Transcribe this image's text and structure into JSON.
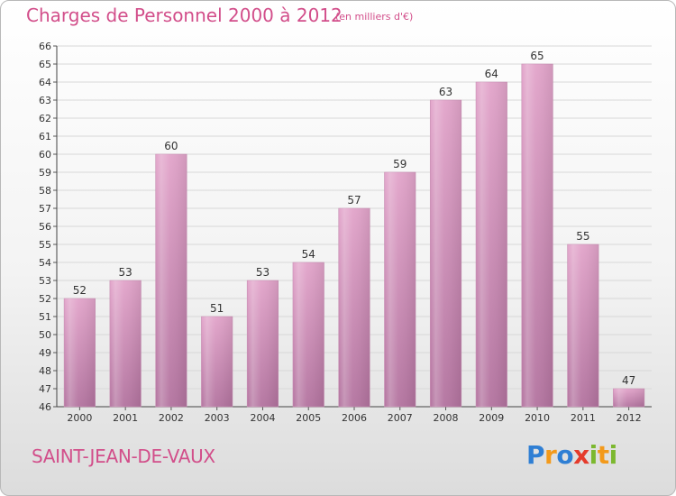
{
  "header": {
    "title": "Charges de Personnel 2000 à 2012",
    "subtitle": "(en milliers d'€)"
  },
  "footer": {
    "commune": "SAINT-JEAN-DE-VAUX",
    "logo_letters": [
      {
        "char": "P",
        "color": "#2f7fd4"
      },
      {
        "char": "r",
        "color": "#f39a1b"
      },
      {
        "char": "o",
        "color": "#2f7fd4"
      },
      {
        "char": "x",
        "color": "#e53b2c"
      },
      {
        "char": "i",
        "color": "#7cb82f"
      },
      {
        "char": "t",
        "color": "#f39a1b"
      },
      {
        "char": "i",
        "color": "#7cb82f"
      }
    ]
  },
  "colors": {
    "bar_fill_top": "#e2a4ca",
    "bar_fill_bottom": "#b3739f",
    "grid": "#d8d8d8",
    "title": "#d24e8a"
  },
  "chart_data": {
    "type": "bar",
    "title": "Charges de Personnel 2000 à 2012",
    "subtitle": "(en milliers d'€)",
    "categories": [
      "2000",
      "2001",
      "2002",
      "2003",
      "2004",
      "2005",
      "2006",
      "2007",
      "2008",
      "2009",
      "2010",
      "2011",
      "2012"
    ],
    "values": [
      52,
      53,
      60,
      51,
      53,
      54,
      57,
      59,
      63,
      64,
      65,
      55,
      47
    ],
    "ylim": [
      46,
      66
    ],
    "ytick_step": 1,
    "grid": true,
    "data_labels": true,
    "xlabel": "",
    "ylabel": ""
  }
}
